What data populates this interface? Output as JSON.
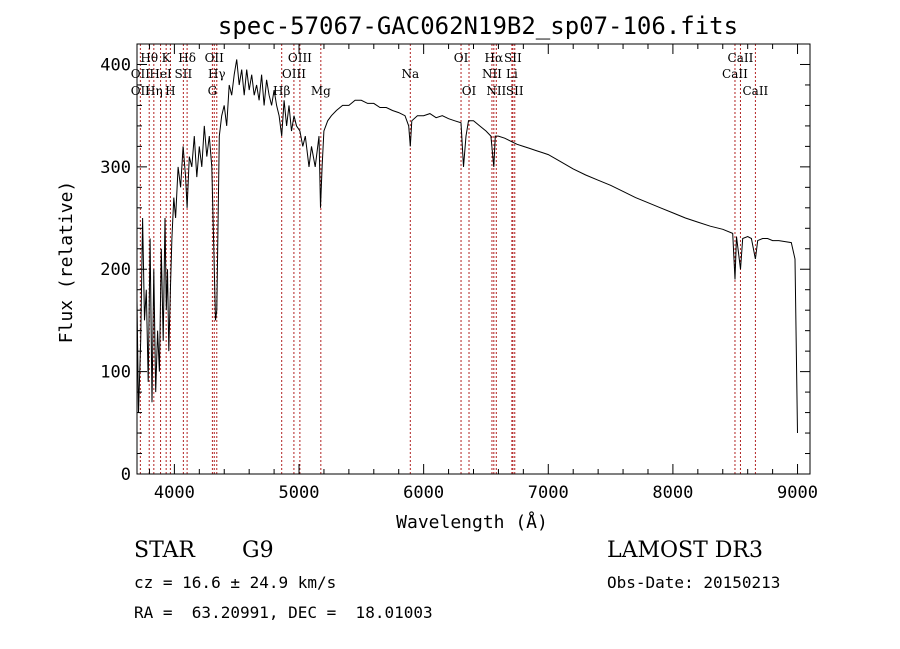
{
  "chart_data": {
    "type": "line",
    "title": "spec-57067-GAC062N19B2_sp07-106.fits",
    "xlabel": "Wavelength (Å)",
    "ylabel": "Flux (relative)",
    "xlim": [
      3700,
      9100
    ],
    "ylim": [
      0,
      420
    ],
    "xticks": [
      4000,
      5000,
      6000,
      7000,
      8000,
      9000
    ],
    "yticks": [
      0,
      100,
      200,
      300,
      400
    ],
    "series": [
      {
        "name": "spectrum",
        "x": [
          3700,
          3712,
          3730,
          3745,
          3760,
          3775,
          3790,
          3805,
          3820,
          3835,
          3850,
          3865,
          3880,
          3895,
          3910,
          3925,
          3935,
          3945,
          3955,
          3968,
          3980,
          3995,
          4010,
          4030,
          4050,
          4070,
          4090,
          4102,
          4120,
          4140,
          4160,
          4180,
          4200,
          4220,
          4240,
          4260,
          4280,
          4300,
          4320,
          4330,
          4340,
          4360,
          4380,
          4400,
          4420,
          4440,
          4460,
          4480,
          4500,
          4520,
          4540,
          4560,
          4580,
          4600,
          4620,
          4640,
          4660,
          4680,
          4700,
          4720,
          4740,
          4760,
          4780,
          4800,
          4820,
          4840,
          4861,
          4880,
          4900,
          4920,
          4940,
          4960,
          4980,
          5007,
          5030,
          5050,
          5080,
          5100,
          5130,
          5160,
          5172,
          5185,
          5200,
          5230,
          5260,
          5300,
          5350,
          5400,
          5450,
          5500,
          5550,
          5600,
          5650,
          5700,
          5750,
          5800,
          5850,
          5880,
          5893,
          5905,
          5950,
          6000,
          6050,
          6100,
          6150,
          6200,
          6250,
          6300,
          6320,
          6340,
          6360,
          6400,
          6450,
          6500,
          6540,
          6563,
          6575,
          6600,
          6650,
          6700,
          6750,
          6800,
          6850,
          6900,
          6950,
          7000,
          7100,
          7200,
          7300,
          7400,
          7500,
          7600,
          7700,
          7800,
          7900,
          8000,
          8100,
          8200,
          8300,
          8400,
          8480,
          8498,
          8510,
          8542,
          8560,
          8600,
          8630,
          8662,
          8680,
          8720,
          8760,
          8800,
          8850,
          8900,
          8950,
          8980,
          9000
        ],
        "y": [
          170,
          60,
          130,
          250,
          150,
          180,
          90,
          230,
          70,
          200,
          80,
          140,
          100,
          220,
          130,
          250,
          160,
          200,
          120,
          180,
          230,
          270,
          250,
          300,
          280,
          320,
          290,
          260,
          310,
          300,
          330,
          290,
          320,
          300,
          340,
          310,
          330,
          300,
          200,
          150,
          160,
          330,
          350,
          360,
          340,
          380,
          370,
          390,
          405,
          380,
          395,
          370,
          395,
          375,
          390,
          370,
          380,
          365,
          390,
          360,
          385,
          370,
          360,
          375,
          360,
          350,
          330,
          365,
          340,
          360,
          335,
          350,
          340,
          335,
          320,
          330,
          300,
          320,
          300,
          330,
          260,
          300,
          335,
          345,
          350,
          355,
          360,
          360,
          365,
          365,
          362,
          362,
          358,
          358,
          355,
          353,
          350,
          340,
          320,
          345,
          350,
          350,
          352,
          348,
          350,
          347,
          345,
          343,
          300,
          330,
          345,
          345,
          340,
          335,
          330,
          300,
          330,
          330,
          328,
          325,
          322,
          320,
          318,
          316,
          314,
          312,
          305,
          298,
          292,
          287,
          282,
          276,
          270,
          265,
          260,
          255,
          250,
          246,
          242,
          239,
          235,
          190,
          232,
          200,
          230,
          232,
          230,
          210,
          228,
          230,
          230,
          228,
          228,
          227,
          226,
          210,
          40
        ]
      }
    ],
    "lines": [
      {
        "name": "Hθ",
        "x": 3798,
        "label_row": 0
      },
      {
        "name": "OII",
        "x": 3727,
        "label_row": 1
      },
      {
        "name": "OII",
        "x": 3727,
        "label_row": 2
      },
      {
        "name": "Hη",
        "x": 3835,
        "label_row": 2
      },
      {
        "name": "HeI",
        "x": 3889,
        "label_row": 1
      },
      {
        "name": "K",
        "x": 3934,
        "label_row": 0
      },
      {
        "name": "SII",
        "x": 4072,
        "label_row": 1
      },
      {
        "name": "H",
        "x": 3968,
        "label_row": 2
      },
      {
        "name": "Hδ",
        "x": 4102,
        "label_row": 0
      },
      {
        "name": "OII",
        "x": 4320,
        "label_row": 0
      },
      {
        "name": "Hγ",
        "x": 4340,
        "label_row": 1
      },
      {
        "name": "G",
        "x": 4305,
        "label_row": 2
      },
      {
        "name": "OIII",
        "x": 5007,
        "label_row": 0
      },
      {
        "name": "OIII",
        "x": 4959,
        "label_row": 1
      },
      {
        "name": "Hβ",
        "x": 4861,
        "label_row": 2
      },
      {
        "name": "Mg",
        "x": 5175,
        "label_row": 2
      },
      {
        "name": "Na",
        "x": 5893,
        "label_row": 1
      },
      {
        "name": "OI",
        "x": 6300,
        "label_row": 0
      },
      {
        "name": "OI",
        "x": 6364,
        "label_row": 2
      },
      {
        "name": "Hα",
        "x": 6563,
        "label_row": 0
      },
      {
        "name": "NII",
        "x": 6548,
        "label_row": 1
      },
      {
        "name": "NII",
        "x": 6583,
        "label_row": 2
      },
      {
        "name": "SII",
        "x": 6716,
        "label_row": 0
      },
      {
        "name": "Li",
        "x": 6708,
        "label_row": 1
      },
      {
        "name": "SII",
        "x": 6731,
        "label_row": 2
      },
      {
        "name": "CaII",
        "x": 8542,
        "label_row": 0
      },
      {
        "name": "CaII",
        "x": 8498,
        "label_row": 1
      },
      {
        "name": "CaII",
        "x": 8662,
        "label_row": 2
      }
    ],
    "grid": false,
    "legend": "none"
  },
  "info": {
    "class_label": "STAR",
    "subclass": "G9",
    "survey": "LAMOST DR3",
    "cz": "cz = 16.6 ± 24.9 km/s",
    "obs_date": "Obs-Date: 20150213",
    "coords": "RA =  63.20991, DEC =  18.01003"
  },
  "colors": {
    "spectrum": "#000000",
    "line_marker": "#b22222",
    "text": "#000000",
    "background": "#ffffff"
  }
}
